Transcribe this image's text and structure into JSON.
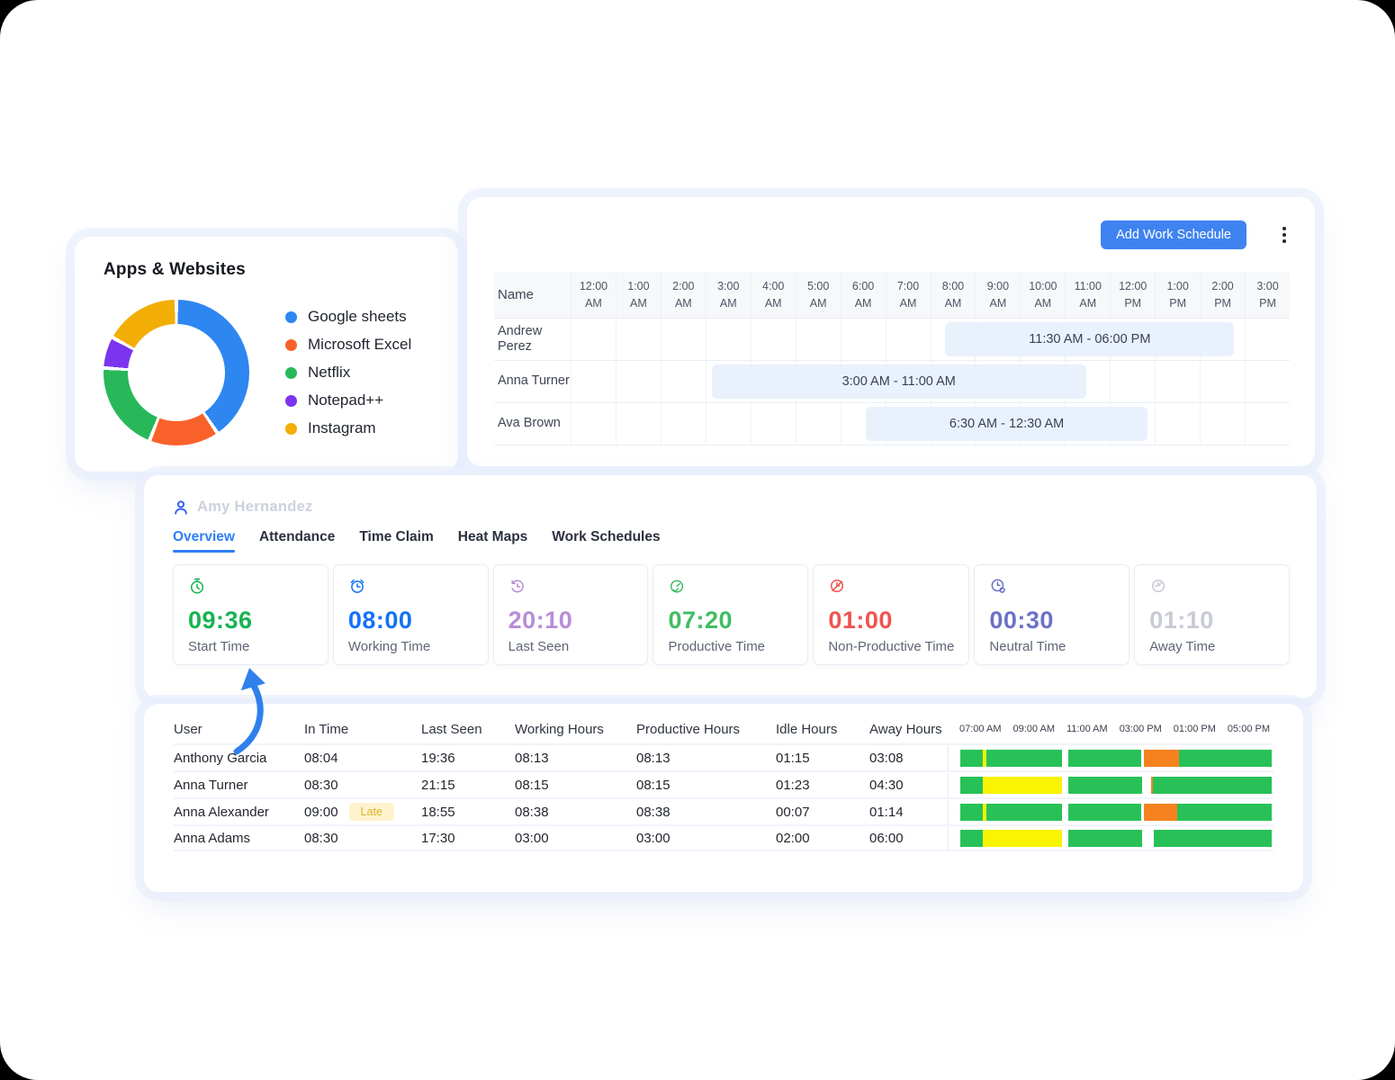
{
  "apps_card": {
    "title": "Apps & Websites"
  },
  "chart_data": {
    "type": "pie",
    "subtype": "donut",
    "title": "Apps & Websites",
    "labels": [
      "Google sheets",
      "Microsoft Excel",
      "Netflix",
      "Notepad++",
      "Instagram"
    ],
    "values_pct": [
      40.5,
      15.5,
      20,
      7,
      17
    ],
    "colors": [
      "#2e86f0",
      "#f9612b",
      "#28b85a",
      "#7c35ee",
      "#f3ae05"
    ],
    "legend_position": "right",
    "start_angle_deg": 0
  },
  "schedule_panel": {
    "add_button_label": "Add Work Schedule",
    "kebab_menu": "more-options",
    "name_header": "Name",
    "time_columns": [
      {
        "time": "12:00",
        "meridiem": "AM"
      },
      {
        "time": "1:00",
        "meridiem": "AM"
      },
      {
        "time": "2:00",
        "meridiem": "AM"
      },
      {
        "time": "3:00",
        "meridiem": "AM"
      },
      {
        "time": "4:00",
        "meridiem": "AM"
      },
      {
        "time": "5:00",
        "meridiem": "AM"
      },
      {
        "time": "6:00",
        "meridiem": "AM"
      },
      {
        "time": "7:00",
        "meridiem": "AM"
      },
      {
        "time": "8:00",
        "meridiem": "AM"
      },
      {
        "time": "9:00",
        "meridiem": "AM"
      },
      {
        "time": "10:00",
        "meridiem": "AM"
      },
      {
        "time": "11:00",
        "meridiem": "AM"
      },
      {
        "time": "12:00",
        "meridiem": "PM"
      },
      {
        "time": "1:00",
        "meridiem": "PM"
      },
      {
        "time": "2:00",
        "meridiem": "PM"
      },
      {
        "time": "3:00",
        "meridiem": "PM"
      }
    ],
    "rows": [
      {
        "name": "Andrew Perez",
        "bar_label": "11:30 AM - 06:00 PM",
        "bar_left_pct": 52.1,
        "bar_width_pct": 40.2
      },
      {
        "name": "Anna Turner",
        "bar_label": "3:00 AM - 11:00 AM",
        "bar_left_pct": 19.6,
        "bar_width_pct": 52.1
      },
      {
        "name": "Ava Brown",
        "bar_label": "6:30 AM - 12:30 AM",
        "bar_left_pct": 41.1,
        "bar_width_pct": 39.1
      }
    ],
    "bar_color": "#e9f1fd"
  },
  "user_panel": {
    "user_name": "Amy Hernandez",
    "tabs": [
      "Overview",
      "Attendance",
      "Time Claim",
      "Heat Maps",
      "Work Schedules"
    ],
    "active_tab": "Overview",
    "stats": [
      {
        "icon": "stopwatch-icon",
        "value": "09:36",
        "label": "Start Time",
        "color": "#17b352"
      },
      {
        "icon": "alarm-clock-icon",
        "value": "08:00",
        "label": "Working Time",
        "color": "#1372f5"
      },
      {
        "icon": "history-clock-icon",
        "value": "20:10",
        "label": "Last Seen",
        "color": "#b88dd8"
      },
      {
        "icon": "productivity-gauge-icon",
        "value": "07:20",
        "label": "Productive Time",
        "color": "#3fbd63"
      },
      {
        "icon": "clock-slash-icon",
        "value": "01:00",
        "label": "Non-Productive Time",
        "color": "#ef5350"
      },
      {
        "icon": "neutral-clock-icon",
        "value": "00:30",
        "label": "Neutral Time",
        "color": "#6b71c8"
      },
      {
        "icon": "away-clock-icon",
        "value": "01:10",
        "label": "Away Time",
        "color": "#c7cbd4"
      }
    ]
  },
  "attendance_panel": {
    "columns": [
      "User",
      "In Time",
      "Last Seen",
      "Working Hours",
      "Productive Hours",
      "Idle Hours",
      "Away Hours"
    ],
    "timeline_ticks": [
      "07:00 AM",
      "09:00 AM",
      "11:00 AM",
      "03:00 PM",
      "01:00 PM",
      "05:00 PM"
    ],
    "late_badge_label": "Late",
    "timeline_colors": {
      "green": "#28c158",
      "yellow": "#f8f402",
      "orange": "#f5821f",
      "gap": "transparent"
    },
    "rows": [
      {
        "user": "Anthony Garcia",
        "in_time": "08:04",
        "late": false,
        "last_seen": "19:36",
        "working_hours": "08:13",
        "productive_hours": "08:13",
        "idle_hours": "01:15",
        "away_hours": "03:08",
        "timeline": [
          [
            "green",
            7.1
          ],
          [
            "yellow",
            1.4
          ],
          [
            "green",
            24.1
          ],
          [
            "gap",
            2.0
          ],
          [
            "green",
            23.6
          ],
          [
            "gap",
            0.9
          ],
          [
            "orange",
            11.1
          ],
          [
            "green",
            29.8
          ]
        ]
      },
      {
        "user": "Anna Turner",
        "in_time": "08:30",
        "late": false,
        "last_seen": "21:15",
        "working_hours": "08:15",
        "productive_hours": "08:15",
        "idle_hours": "01:23",
        "away_hours": "04:30",
        "timeline": [
          [
            "green",
            7.1
          ],
          [
            "yellow",
            25.6
          ],
          [
            "gap",
            2.0
          ],
          [
            "green",
            23.6
          ],
          [
            "gap",
            3.1
          ],
          [
            "orange",
            0.6
          ],
          [
            "green",
            38.0
          ]
        ]
      },
      {
        "user": "Anna Alexander",
        "in_time": "09:00",
        "late": true,
        "last_seen": "18:55",
        "working_hours": "08:38",
        "productive_hours": "08:38",
        "idle_hours": "00:07",
        "away_hours": "01:14",
        "timeline": [
          [
            "green",
            7.1
          ],
          [
            "yellow",
            1.4
          ],
          [
            "green",
            24.1
          ],
          [
            "gap",
            2.0
          ],
          [
            "green",
            23.6
          ],
          [
            "gap",
            0.9
          ],
          [
            "orange",
            10.5
          ],
          [
            "green",
            30.4
          ]
        ]
      },
      {
        "user": "Anna Adams",
        "in_time": "08:30",
        "late": false,
        "last_seen": "17:30",
        "working_hours": "03:00",
        "productive_hours": "03:00",
        "idle_hours": "02:00",
        "away_hours": "06:00",
        "timeline": [
          [
            "green",
            7.1
          ],
          [
            "yellow",
            25.6
          ],
          [
            "gap",
            2.0
          ],
          [
            "green",
            23.6
          ],
          [
            "gap",
            3.8
          ],
          [
            "green",
            37.9
          ]
        ]
      }
    ]
  }
}
